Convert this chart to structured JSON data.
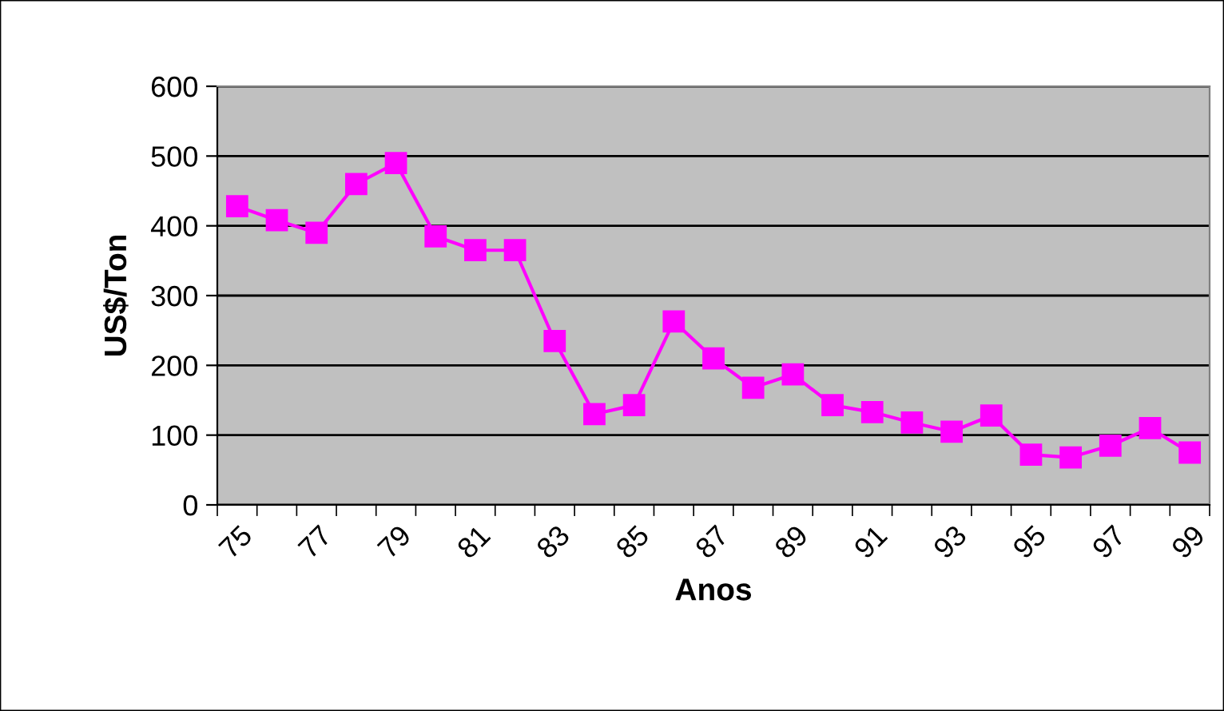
{
  "chart_data": {
    "type": "line",
    "xlabel": "Anos",
    "ylabel": "US$/Ton",
    "categories": [
      "75",
      null,
      "77",
      null,
      "79",
      null,
      "81",
      null,
      "83",
      null,
      "85",
      null,
      "87",
      null,
      "89",
      null,
      "91",
      null,
      "93",
      null,
      "95",
      null,
      "97",
      null,
      "99"
    ],
    "series": [
      {
        "color": "#ff00ff",
        "values": [
          428,
          408,
          390,
          460,
          490,
          385,
          365,
          365,
          235,
          130,
          143,
          263,
          210,
          168,
          187,
          143,
          133,
          118,
          105,
          128,
          72,
          68,
          85,
          110,
          75
        ]
      }
    ],
    "ylim": [
      0,
      600
    ],
    "yticks": [
      0,
      100,
      200,
      300,
      400,
      500,
      600
    ],
    "grid": "y",
    "marker": "square",
    "line_style": "solid",
    "legend": false
  }
}
